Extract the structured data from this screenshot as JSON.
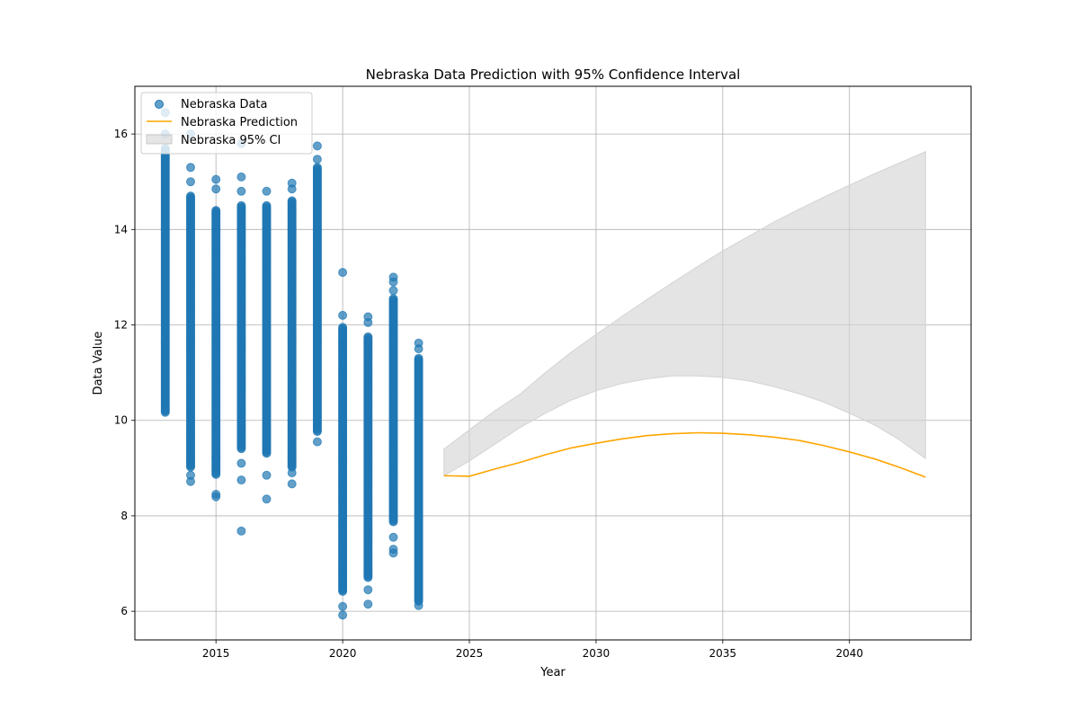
{
  "chart_data": {
    "type": "scatter",
    "title": "Nebraska Data Prediction with 95% Confidence Interval",
    "xlabel": "Year",
    "ylabel": "Data Value",
    "xlim": [
      2011.8,
      2044.8
    ],
    "ylim": [
      5.4,
      17.0
    ],
    "x_ticks": [
      2015,
      2020,
      2025,
      2030,
      2035,
      2040
    ],
    "y_ticks": [
      6,
      8,
      10,
      12,
      14,
      16
    ],
    "grid": true,
    "legend_position": "top-left",
    "legend": [
      {
        "label": "Nebraska Data",
        "kind": "scatter",
        "color": "#1f77b4"
      },
      {
        "label": "Nebraska Prediction",
        "kind": "line",
        "color": "#ffa500"
      },
      {
        "label": "Nebraska 95% CI",
        "kind": "band",
        "color": "#d3d3d3"
      }
    ],
    "series": [
      {
        "name": "Nebraska Data",
        "kind": "scatter",
        "color": "#1f77b4",
        "groups": [
          {
            "x": 2013,
            "min": 10.15,
            "max": 15.7,
            "outliers": [
              16.45,
              16.0
            ]
          },
          {
            "x": 2014,
            "min": 9.0,
            "max": 14.7,
            "outliers": [
              8.72,
              8.85,
              15.0,
              15.3,
              16.0
            ]
          },
          {
            "x": 2015,
            "min": 8.85,
            "max": 14.4,
            "outliers": [
              8.4,
              8.45,
              14.85,
              15.05
            ]
          },
          {
            "x": 2016,
            "min": 9.4,
            "max": 14.5,
            "outliers": [
              7.68,
              8.75,
              9.1,
              14.8,
              15.1,
              15.8
            ]
          },
          {
            "x": 2017,
            "min": 9.3,
            "max": 14.5,
            "outliers": [
              8.35,
              8.85,
              14.8
            ]
          },
          {
            "x": 2018,
            "min": 9.0,
            "max": 14.6,
            "outliers": [
              8.67,
              8.9,
              14.85,
              14.97
            ]
          },
          {
            "x": 2019,
            "min": 9.75,
            "max": 15.3,
            "outliers": [
              9.55,
              15.47,
              15.75
            ]
          },
          {
            "x": 2020,
            "min": 6.4,
            "max": 11.95,
            "outliers": [
              5.92,
              6.1,
              12.2,
              13.1
            ]
          },
          {
            "x": 2021,
            "min": 6.7,
            "max": 11.75,
            "outliers": [
              6.15,
              6.45,
              12.05,
              12.17
            ]
          },
          {
            "x": 2022,
            "min": 7.85,
            "max": 12.55,
            "outliers": [
              7.22,
              7.3,
              7.55,
              12.72,
              12.9,
              13.0
            ]
          },
          {
            "x": 2023,
            "min": 6.2,
            "max": 11.3,
            "outliers": [
              6.12,
              11.5,
              11.62
            ]
          }
        ]
      },
      {
        "name": "Nebraska Prediction",
        "kind": "line",
        "color": "#ffa500",
        "x": [
          2024,
          2025,
          2026,
          2027,
          2028,
          2029,
          2030,
          2031,
          2032,
          2033,
          2034,
          2035,
          2036,
          2037,
          2038,
          2039,
          2040,
          2041,
          2042,
          2043
        ],
        "y": [
          8.84,
          8.83,
          8.98,
          9.12,
          9.28,
          9.42,
          9.52,
          9.61,
          9.68,
          9.72,
          9.74,
          9.73,
          9.7,
          9.65,
          9.58,
          9.47,
          9.34,
          9.19,
          9.01,
          8.81
        ]
      },
      {
        "name": "Nebraska 95% CI",
        "kind": "band",
        "color": "#d3d3d3",
        "x": [
          2024,
          2025,
          2026,
          2027,
          2028,
          2029,
          2030,
          2031,
          2032,
          2033,
          2034,
          2035,
          2036,
          2037,
          2038,
          2039,
          2040,
          2041,
          2042,
          2043
        ],
        "lower": [
          8.84,
          9.15,
          9.5,
          9.85,
          10.15,
          10.42,
          10.62,
          10.77,
          10.87,
          10.93,
          10.93,
          10.9,
          10.83,
          10.71,
          10.56,
          10.38,
          10.15,
          9.9,
          9.58,
          9.2
        ],
        "upper": [
          9.4,
          9.8,
          10.2,
          10.55,
          11.0,
          11.42,
          11.8,
          12.17,
          12.53,
          12.88,
          13.22,
          13.55,
          13.85,
          14.15,
          14.42,
          14.68,
          14.93,
          15.17,
          15.4,
          15.63
        ]
      }
    ]
  }
}
